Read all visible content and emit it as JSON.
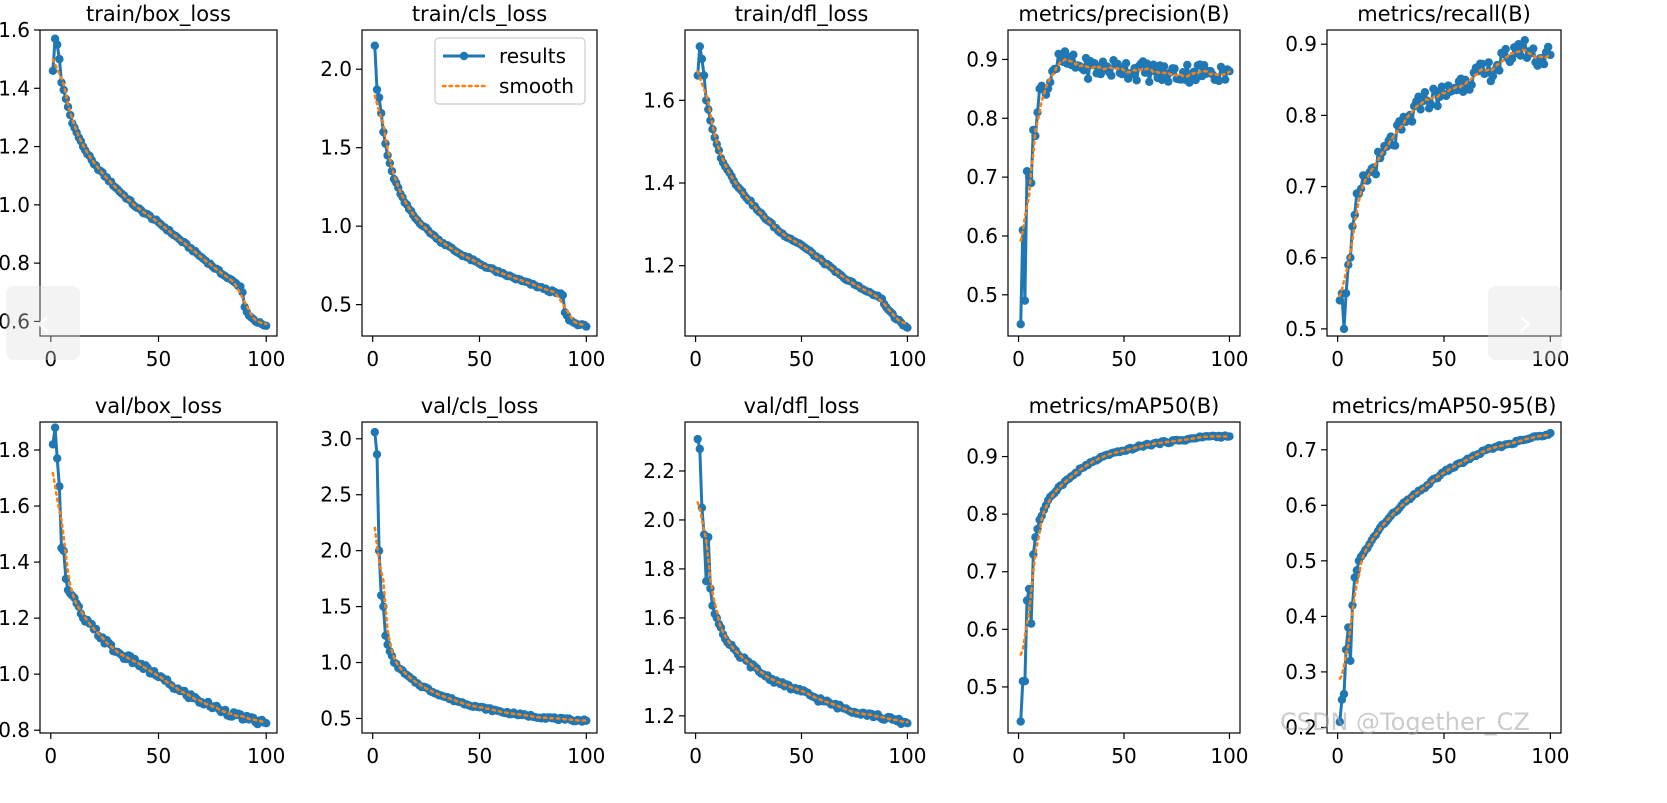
{
  "legend": {
    "results": "results",
    "smooth": "smooth"
  },
  "colors": {
    "results": "#1f77b4",
    "smooth": "#ff7f0e"
  },
  "nav": {
    "prev_icon": "‹",
    "next_icon": "›"
  },
  "watermark": "CSDN @Together_CZ",
  "chart_data": [
    {
      "type": "line",
      "title": "train/box_loss",
      "xlim": [
        -5,
        105
      ],
      "ylim": [
        0.55,
        1.6
      ],
      "xticks": [
        0,
        50,
        100
      ],
      "yticks": [
        0.6,
        0.8,
        1.0,
        1.2,
        1.4,
        1.6
      ],
      "ytick_labels": [
        "0.6",
        "0.8",
        "1.0",
        "1.2",
        "1.4",
        "1.6"
      ],
      "anchors": [
        [
          1,
          1.46
        ],
        [
          2,
          1.57
        ],
        [
          3,
          1.55
        ],
        [
          4,
          1.5
        ],
        [
          5,
          1.42
        ],
        [
          10,
          1.28
        ],
        [
          15,
          1.2
        ],
        [
          20,
          1.14
        ],
        [
          30,
          1.06
        ],
        [
          40,
          0.99
        ],
        [
          50,
          0.94
        ],
        [
          60,
          0.88
        ],
        [
          70,
          0.82
        ],
        [
          80,
          0.76
        ],
        [
          88,
          0.72
        ],
        [
          89,
          0.7
        ],
        [
          90,
          0.65
        ],
        [
          92,
          0.62
        ],
        [
          95,
          0.6
        ],
        [
          100,
          0.585
        ]
      ]
    },
    {
      "type": "line",
      "title": "train/cls_loss",
      "xlim": [
        -5,
        105
      ],
      "ylim": [
        0.3,
        2.25
      ],
      "xticks": [
        0,
        50,
        100
      ],
      "yticks": [
        0.5,
        1.0,
        1.5,
        2.0
      ],
      "ytick_labels": [
        "0.5",
        "1.0",
        "1.5",
        "2.0"
      ],
      "legend": true,
      "anchors": [
        [
          1,
          2.15
        ],
        [
          2,
          1.87
        ],
        [
          3,
          1.82
        ],
        [
          4,
          1.72
        ],
        [
          5,
          1.6
        ],
        [
          7,
          1.45
        ],
        [
          10,
          1.3
        ],
        [
          15,
          1.15
        ],
        [
          20,
          1.05
        ],
        [
          30,
          0.92
        ],
        [
          40,
          0.83
        ],
        [
          50,
          0.76
        ],
        [
          60,
          0.7
        ],
        [
          70,
          0.65
        ],
        [
          80,
          0.6
        ],
        [
          89,
          0.56
        ],
        [
          90,
          0.45
        ],
        [
          92,
          0.4
        ],
        [
          95,
          0.38
        ],
        [
          100,
          0.36
        ]
      ]
    },
    {
      "type": "line",
      "title": "train/dfl_loss",
      "xlim": [
        -5,
        105
      ],
      "ylim": [
        1.03,
        1.77
      ],
      "xticks": [
        0,
        50,
        100
      ],
      "yticks": [
        1.2,
        1.4,
        1.6
      ],
      "ytick_labels": [
        "1.2",
        "1.4",
        "1.6"
      ],
      "anchors": [
        [
          1,
          1.66
        ],
        [
          2,
          1.73
        ],
        [
          3,
          1.7
        ],
        [
          4,
          1.66
        ],
        [
          5,
          1.6
        ],
        [
          8,
          1.53
        ],
        [
          12,
          1.46
        ],
        [
          20,
          1.39
        ],
        [
          30,
          1.33
        ],
        [
          40,
          1.28
        ],
        [
          50,
          1.25
        ],
        [
          60,
          1.21
        ],
        [
          70,
          1.17
        ],
        [
          80,
          1.14
        ],
        [
          88,
          1.12
        ],
        [
          90,
          1.1
        ],
        [
          95,
          1.07
        ],
        [
          100,
          1.05
        ]
      ]
    },
    {
      "type": "line",
      "title": "metrics/precision(B)",
      "xlim": [
        -5,
        105
      ],
      "ylim": [
        0.43,
        0.95
      ],
      "xticks": [
        0,
        50,
        100
      ],
      "yticks": [
        0.5,
        0.6,
        0.7,
        0.8,
        0.9
      ],
      "ytick_labels": [
        "0.5",
        "0.6",
        "0.7",
        "0.8",
        "0.9"
      ],
      "noisy": 0.018,
      "anchors": [
        [
          1,
          0.45
        ],
        [
          2,
          0.61
        ],
        [
          3,
          0.49
        ],
        [
          4,
          0.71
        ],
        [
          5,
          0.7
        ],
        [
          6,
          0.69
        ],
        [
          7,
          0.78
        ],
        [
          8,
          0.77
        ],
        [
          10,
          0.85
        ],
        [
          13,
          0.84
        ],
        [
          16,
          0.88
        ],
        [
          20,
          0.9
        ],
        [
          30,
          0.885
        ],
        [
          50,
          0.885
        ],
        [
          70,
          0.875
        ],
        [
          90,
          0.88
        ],
        [
          100,
          0.88
        ]
      ]
    },
    {
      "type": "line",
      "title": "metrics/recall(B)",
      "xlim": [
        -5,
        105
      ],
      "ylim": [
        0.49,
        0.92
      ],
      "xticks": [
        0,
        50,
        100
      ],
      "yticks": [
        0.5,
        0.6,
        0.7,
        0.8,
        0.9
      ],
      "ytick_labels": [
        "0.5",
        "0.6",
        "0.7",
        "0.8",
        "0.9"
      ],
      "noisy": 0.016,
      "anchors": [
        [
          1,
          0.54
        ],
        [
          2,
          0.55
        ],
        [
          3,
          0.5
        ],
        [
          4,
          0.55
        ],
        [
          5,
          0.59
        ],
        [
          6,
          0.6
        ],
        [
          8,
          0.66
        ],
        [
          10,
          0.69
        ],
        [
          15,
          0.72
        ],
        [
          20,
          0.74
        ],
        [
          30,
          0.78
        ],
        [
          40,
          0.82
        ],
        [
          50,
          0.83
        ],
        [
          60,
          0.85
        ],
        [
          70,
          0.86
        ],
        [
          80,
          0.88
        ],
        [
          85,
          0.9
        ],
        [
          90,
          0.89
        ],
        [
          95,
          0.88
        ],
        [
          100,
          0.885
        ]
      ]
    },
    {
      "type": "line",
      "title": "val/box_loss",
      "xlim": [
        -5,
        105
      ],
      "ylim": [
        0.79,
        1.9
      ],
      "xticks": [
        0,
        50,
        100
      ],
      "yticks": [
        0.8,
        1.0,
        1.2,
        1.4,
        1.6,
        1.8
      ],
      "ytick_labels": [
        "0.8",
        "1.0",
        "1.2",
        "1.4",
        "1.6",
        "1.8"
      ],
      "noisy": 0.012,
      "anchors": [
        [
          1,
          1.82
        ],
        [
          2,
          1.88
        ],
        [
          3,
          1.77
        ],
        [
          4,
          1.67
        ],
        [
          5,
          1.45
        ],
        [
          6,
          1.44
        ],
        [
          7,
          1.34
        ],
        [
          8,
          1.3
        ],
        [
          10,
          1.28
        ],
        [
          15,
          1.2
        ],
        [
          20,
          1.16
        ],
        [
          30,
          1.08
        ],
        [
          40,
          1.04
        ],
        [
          50,
          0.99
        ],
        [
          60,
          0.94
        ],
        [
          70,
          0.9
        ],
        [
          80,
          0.87
        ],
        [
          90,
          0.84
        ],
        [
          100,
          0.825
        ]
      ]
    },
    {
      "type": "line",
      "title": "val/cls_loss",
      "xlim": [
        -5,
        105
      ],
      "ylim": [
        0.37,
        3.15
      ],
      "xticks": [
        0,
        50,
        100
      ],
      "yticks": [
        0.5,
        1.0,
        1.5,
        2.0,
        2.5,
        3.0
      ],
      "ytick_labels": [
        "0.5",
        "1.0",
        "1.5",
        "2.0",
        "2.5",
        "3.0"
      ],
      "anchors": [
        [
          1,
          3.06
        ],
        [
          2,
          2.86
        ],
        [
          3,
          2.0
        ],
        [
          4,
          1.6
        ],
        [
          5,
          1.5
        ],
        [
          6,
          1.24
        ],
        [
          8,
          1.1
        ],
        [
          10,
          1.0
        ],
        [
          15,
          0.9
        ],
        [
          20,
          0.82
        ],
        [
          30,
          0.72
        ],
        [
          40,
          0.65
        ],
        [
          50,
          0.6
        ],
        [
          60,
          0.56
        ],
        [
          70,
          0.53
        ],
        [
          80,
          0.51
        ],
        [
          90,
          0.49
        ],
        [
          100,
          0.48
        ]
      ]
    },
    {
      "type": "line",
      "title": "val/dfl_loss",
      "xlim": [
        -5,
        105
      ],
      "ylim": [
        1.13,
        2.4
      ],
      "xticks": [
        0,
        50,
        100
      ],
      "yticks": [
        1.2,
        1.4,
        1.6,
        1.8,
        2.0,
        2.2
      ],
      "ytick_labels": [
        "1.2",
        "1.4",
        "1.6",
        "1.8",
        "2.0",
        "2.2"
      ],
      "noisy": 0.01,
      "anchors": [
        [
          1,
          2.33
        ],
        [
          2,
          2.29
        ],
        [
          3,
          2.05
        ],
        [
          4,
          1.94
        ],
        [
          5,
          1.75
        ],
        [
          6,
          1.93
        ],
        [
          7,
          1.72
        ],
        [
          8,
          1.65
        ],
        [
          10,
          1.6
        ],
        [
          15,
          1.5
        ],
        [
          20,
          1.45
        ],
        [
          30,
          1.38
        ],
        [
          40,
          1.33
        ],
        [
          50,
          1.3
        ],
        [
          60,
          1.26
        ],
        [
          70,
          1.23
        ],
        [
          80,
          1.21
        ],
        [
          90,
          1.19
        ],
        [
          100,
          1.17
        ]
      ]
    },
    {
      "type": "line",
      "title": "metrics/mAP50(B)",
      "xlim": [
        -5,
        105
      ],
      "ylim": [
        0.42,
        0.96
      ],
      "xticks": [
        0,
        50,
        100
      ],
      "yticks": [
        0.5,
        0.6,
        0.7,
        0.8,
        0.9
      ],
      "ytick_labels": [
        "0.5",
        "0.6",
        "0.7",
        "0.8",
        "0.9"
      ],
      "anchors": [
        [
          1,
          0.44
        ],
        [
          2,
          0.51
        ],
        [
          3,
          0.51
        ],
        [
          4,
          0.65
        ],
        [
          5,
          0.67
        ],
        [
          6,
          0.61
        ],
        [
          7,
          0.73
        ],
        [
          8,
          0.76
        ],
        [
          10,
          0.79
        ],
        [
          15,
          0.83
        ],
        [
          20,
          0.85
        ],
        [
          30,
          0.88
        ],
        [
          40,
          0.9
        ],
        [
          50,
          0.91
        ],
        [
          60,
          0.92
        ],
        [
          70,
          0.925
        ],
        [
          80,
          0.93
        ],
        [
          90,
          0.935
        ],
        [
          100,
          0.935
        ]
      ]
    },
    {
      "type": "line",
      "title": "metrics/mAP50-95(B)",
      "xlim": [
        -5,
        105
      ],
      "ylim": [
        0.19,
        0.75
      ],
      "xticks": [
        0,
        50,
        100
      ],
      "yticks": [
        0.2,
        0.3,
        0.4,
        0.5,
        0.6,
        0.7
      ],
      "ytick_labels": [
        "0.2",
        "0.3",
        "0.4",
        "0.5",
        "0.6",
        "0.7"
      ],
      "anchors": [
        [
          1,
          0.21
        ],
        [
          2,
          0.25
        ],
        [
          3,
          0.26
        ],
        [
          4,
          0.34
        ],
        [
          5,
          0.38
        ],
        [
          6,
          0.32
        ],
        [
          7,
          0.42
        ],
        [
          8,
          0.47
        ],
        [
          10,
          0.5
        ],
        [
          15,
          0.53
        ],
        [
          20,
          0.56
        ],
        [
          30,
          0.6
        ],
        [
          40,
          0.63
        ],
        [
          50,
          0.66
        ],
        [
          60,
          0.68
        ],
        [
          70,
          0.7
        ],
        [
          80,
          0.71
        ],
        [
          90,
          0.72
        ],
        [
          100,
          0.73
        ]
      ]
    }
  ]
}
